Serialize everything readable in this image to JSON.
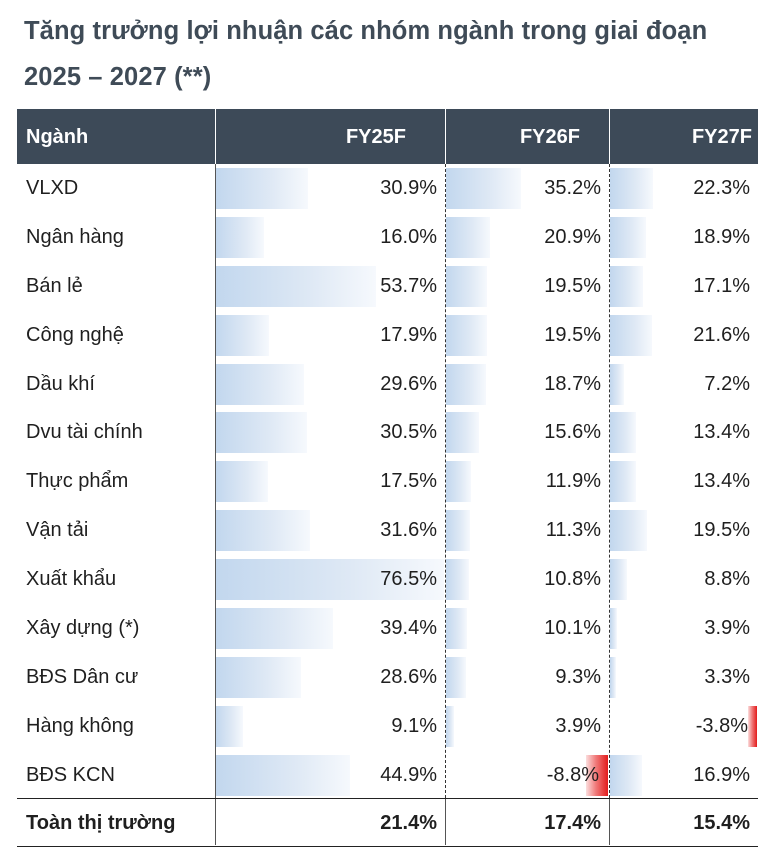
{
  "title": "Tăng trưởng lợi nhuận các nhóm ngành trong giai đoạn 2025 – 2027 (**)",
  "headers": {
    "sector": "Ngành",
    "fy25": "FY25F",
    "fy26": "FY26F",
    "fy27": "FY27F"
  },
  "bar_scale_max": 76.5,
  "rows": [
    {
      "sector": "VLXD",
      "fy25": "30.9%",
      "fy26": "35.2%",
      "fy27": "22.3%",
      "v25": 30.9,
      "v26": 35.2,
      "v27": 22.3
    },
    {
      "sector": "Ngân hàng",
      "fy25": "16.0%",
      "fy26": "20.9%",
      "fy27": "18.9%",
      "v25": 16.0,
      "v26": 20.9,
      "v27": 18.9
    },
    {
      "sector": "Bán lẻ",
      "fy25": "53.7%",
      "fy26": "19.5%",
      "fy27": "17.1%",
      "v25": 53.7,
      "v26": 19.5,
      "v27": 17.1
    },
    {
      "sector": "Công nghệ",
      "fy25": "17.9%",
      "fy26": "19.5%",
      "fy27": "21.6%",
      "v25": 17.9,
      "v26": 19.5,
      "v27": 21.6
    },
    {
      "sector": "Dầu khí",
      "fy25": "29.6%",
      "fy26": "18.7%",
      "fy27": "7.2%",
      "v25": 29.6,
      "v26": 18.7,
      "v27": 7.2
    },
    {
      "sector": "Dvu tài chính",
      "fy25": "30.5%",
      "fy26": "15.6%",
      "fy27": "13.4%",
      "v25": 30.5,
      "v26": 15.6,
      "v27": 13.4
    },
    {
      "sector": "Thực phẩm",
      "fy25": "17.5%",
      "fy26": "11.9%",
      "fy27": "13.4%",
      "v25": 17.5,
      "v26": 11.9,
      "v27": 13.4
    },
    {
      "sector": "Vận tải",
      "fy25": "31.6%",
      "fy26": "11.3%",
      "fy27": "19.5%",
      "v25": 31.6,
      "v26": 11.3,
      "v27": 19.5
    },
    {
      "sector": "Xuất khẩu",
      "fy25": "76.5%",
      "fy26": "10.8%",
      "fy27": "8.8%",
      "v25": 76.5,
      "v26": 10.8,
      "v27": 8.8
    },
    {
      "sector": "Xây dựng (*)",
      "fy25": "39.4%",
      "fy26": "10.1%",
      "fy27": "3.9%",
      "v25": 39.4,
      "v26": 10.1,
      "v27": 3.9
    },
    {
      "sector": "BĐS Dân cư",
      "fy25": "28.6%",
      "fy26": "9.3%",
      "fy27": "3.3%",
      "v25": 28.6,
      "v26": 9.3,
      "v27": 3.3
    },
    {
      "sector": "Hàng không",
      "fy25": "9.1%",
      "fy26": "3.9%",
      "fy27": "-3.8%",
      "v25": 9.1,
      "v26": 3.9,
      "v27": -3.8
    },
    {
      "sector": "BĐS KCN",
      "fy25": "44.9%",
      "fy26": "-8.8%",
      "fy27": "16.9%",
      "v25": 44.9,
      "v26": -8.8,
      "v27": 16.9
    }
  ],
  "total": {
    "sector": "Toàn thị trường",
    "fy25": "21.4%",
    "fy26": "17.4%",
    "fy27": "15.4%"
  }
}
